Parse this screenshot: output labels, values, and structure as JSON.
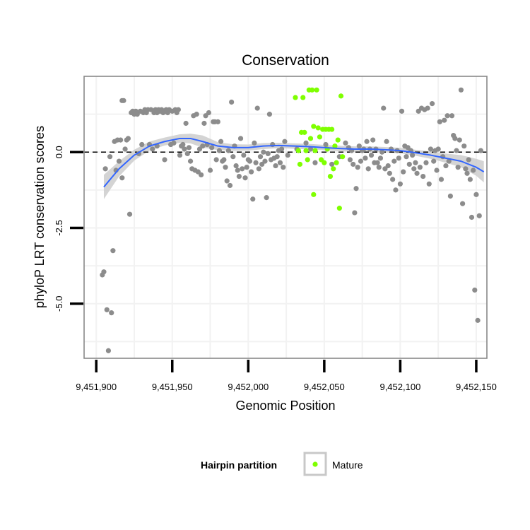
{
  "chart_data": {
    "type": "scatter",
    "title": "Conservation",
    "xlabel": "Genomic Position",
    "ylabel": "phyloP LRT conservation scores",
    "xlim": [
      9451892,
      9452157
    ],
    "ylim": [
      -6.8,
      2.5
    ],
    "x_ticks": [
      {
        "value": 9451900,
        "label": "9,451,900"
      },
      {
        "value": 9451950,
        "label": "9,451,950"
      },
      {
        "value": 9452000,
        "label": "9,452,000"
      },
      {
        "value": 9452050,
        "label": "9,452,050"
      },
      {
        "value": 9452100,
        "label": "9,452,100"
      },
      {
        "value": 9452150,
        "label": "9,452,150"
      }
    ],
    "y_ticks": [
      {
        "value": 0,
        "label": "0.0"
      },
      {
        "value": -2.5,
        "label": "-2.5"
      },
      {
        "value": -5,
        "label": "-5.0"
      }
    ],
    "reference_line": {
      "y": 0,
      "style": "dashed",
      "color": "#000000"
    },
    "grid": true,
    "colors": {
      "other": "#8c8c8c",
      "mature": "#7fff00",
      "smooth_line": "#3366ff",
      "confidence_band": "#cccccc",
      "panel_border": "#888888",
      "grid": "#f2f2f2"
    },
    "legend": {
      "title": "Hairpin partition",
      "placement": "bottom",
      "entries": [
        {
          "name": "Mature",
          "color": "#7fff00"
        }
      ]
    },
    "series": [
      {
        "group": "other",
        "points": [
          [
            9451904,
            -4.05
          ],
          [
            9451905,
            -3.95
          ],
          [
            9451906,
            -0.55
          ],
          [
            9451907,
            -5.2
          ],
          [
            9451908,
            -6.55
          ],
          [
            9451909,
            -0.15
          ],
          [
            9451910,
            -5.3
          ],
          [
            9451911,
            -3.25
          ],
          [
            9451912,
            0.35
          ],
          [
            9451913,
            -0.6
          ],
          [
            9451914,
            0.4
          ],
          [
            9451915,
            -0.3
          ],
          [
            9451916,
            0.4
          ],
          [
            9451917,
            -0.85
          ],
          [
            9451917,
            1.7
          ],
          [
            9451918,
            1.7
          ],
          [
            9451919,
            0.1
          ],
          [
            9451920,
            0.4
          ],
          [
            9451921,
            0.45
          ],
          [
            9451922,
            -2.05
          ],
          [
            9451923,
            1.3
          ],
          [
            9451924,
            1.35
          ],
          [
            9451925,
            1.25
          ],
          [
            9451926,
            1.35
          ],
          [
            9451927,
            1.25
          ],
          [
            9451928,
            -0.05
          ],
          [
            9451929,
            1.35
          ],
          [
            9451930,
            0.25
          ],
          [
            9451931,
            1.3
          ],
          [
            9451932,
            1.4
          ],
          [
            9451933,
            1.3
          ],
          [
            9451934,
            1.4
          ],
          [
            9451935,
            0.25
          ],
          [
            9451936,
            1.4
          ],
          [
            9451937,
            0.1
          ],
          [
            9451938,
            1.3
          ],
          [
            9451939,
            1.4
          ],
          [
            9451940,
            1.3
          ],
          [
            9451940,
            0.2
          ],
          [
            9451941,
            1.4
          ],
          [
            9451942,
            1.35
          ],
          [
            9451943,
            1.4
          ],
          [
            9451944,
            1.3
          ],
          [
            9451945,
            -0.25
          ],
          [
            9451946,
            1.4
          ],
          [
            9451947,
            1.3
          ],
          [
            9451948,
            1.4
          ],
          [
            9451949,
            0.25
          ],
          [
            9451950,
            1.35
          ],
          [
            9451951,
            0.3
          ],
          [
            9451952,
            1.4
          ],
          [
            9451953,
            1.3
          ],
          [
            9451954,
            1.4
          ],
          [
            9451955,
            -0.1
          ],
          [
            9451956,
            0.2
          ],
          [
            9451957,
            0.25
          ],
          [
            9451958,
            0.1
          ],
          [
            9451959,
            0.95
          ],
          [
            9451960,
            -0.05
          ],
          [
            9451961,
            0.15
          ],
          [
            9451962,
            -0.3
          ],
          [
            9451963,
            -0.55
          ],
          [
            9451964,
            1.2
          ],
          [
            9451965,
            -0.6
          ],
          [
            9451966,
            1.25
          ],
          [
            9451967,
            -0.65
          ],
          [
            9451968,
            0.1
          ],
          [
            9451969,
            -0.75
          ],
          [
            9451970,
            0.2
          ],
          [
            9451971,
            0.95
          ],
          [
            9451972,
            1.2
          ],
          [
            9451973,
            0.25
          ],
          [
            9451974,
            1.3
          ],
          [
            9451975,
            -0.6
          ],
          [
            9451976,
            0.15
          ],
          [
            9451977,
            1.0
          ],
          [
            9451978,
            1.0
          ],
          [
            9451979,
            -0.25
          ],
          [
            9451980,
            1.0
          ],
          [
            9451981,
            0.05
          ],
          [
            9451982,
            0.35
          ],
          [
            9451983,
            -0.3
          ],
          [
            9451984,
            -0.25
          ],
          [
            9451985,
            -0.5
          ],
          [
            9451986,
            -0.95
          ],
          [
            9451987,
            0.05
          ],
          [
            9451988,
            -1.1
          ],
          [
            9451989,
            1.65
          ],
          [
            9451990,
            -0.15
          ],
          [
            9451991,
            0.2
          ],
          [
            9451992,
            -0.45
          ],
          [
            9451993,
            -0.6
          ],
          [
            9451994,
            -0.8
          ],
          [
            9451995,
            0.45
          ],
          [
            9451996,
            -0.55
          ],
          [
            9451997,
            -0.1
          ],
          [
            9451998,
            -0.85
          ],
          [
            9451999,
            -0.5
          ],
          [
            9452000,
            -0.25
          ],
          [
            9452001,
            -0.3
          ],
          [
            9452002,
            -0.65
          ],
          [
            9452003,
            -1.55
          ],
          [
            9452004,
            0.3
          ],
          [
            9452005,
            -0.35
          ],
          [
            9452006,
            1.45
          ],
          [
            9452007,
            -0.55
          ],
          [
            9452008,
            -0.15
          ],
          [
            9452009,
            -0.4
          ],
          [
            9452010,
            0.0
          ],
          [
            9452011,
            -0.3
          ],
          [
            9452012,
            -1.5
          ],
          [
            9452013,
            -0.05
          ],
          [
            9452014,
            1.25
          ],
          [
            9452015,
            -0.25
          ],
          [
            9452016,
            0.25
          ],
          [
            9452017,
            -0.2
          ],
          [
            9452018,
            -0.45
          ],
          [
            9452019,
            -0.15
          ],
          [
            9452020,
            0.05
          ],
          [
            9452021,
            -0.35
          ],
          [
            9452022,
            0.1
          ],
          [
            9452023,
            -0.5
          ],
          [
            9452024,
            0.35
          ],
          [
            9452026,
            -0.1
          ],
          [
            9452032,
            0.1
          ],
          [
            9452038,
            0.3
          ],
          [
            9452041,
            0.1
          ],
          [
            9452044,
            -0.35
          ],
          [
            9452051,
            0.25
          ],
          [
            9452055,
            -0.4
          ],
          [
            9452060,
            -0.15
          ],
          [
            9452064,
            0.3
          ],
          [
            9452066,
            0.15
          ],
          [
            9452067,
            -0.25
          ],
          [
            9452068,
            0.05
          ],
          [
            9452069,
            -0.4
          ],
          [
            9452070,
            -2.0
          ],
          [
            9452071,
            -1.2
          ],
          [
            9452072,
            -0.5
          ],
          [
            9452073,
            0.2
          ],
          [
            9452074,
            -0.3
          ],
          [
            9452075,
            0.05
          ],
          [
            9452076,
            0.1
          ],
          [
            9452077,
            -0.2
          ],
          [
            9452078,
            0.35
          ],
          [
            9452079,
            -0.55
          ],
          [
            9452080,
            0.1
          ],
          [
            9452081,
            -0.1
          ],
          [
            9452082,
            0.4
          ],
          [
            9452083,
            -0.35
          ],
          [
            9452084,
            0.1
          ],
          [
            9452085,
            -0.35
          ],
          [
            9452086,
            -0.5
          ],
          [
            9452087,
            -0.2
          ],
          [
            9452088,
            0.0
          ],
          [
            9452089,
            1.45
          ],
          [
            9452090,
            -0.55
          ],
          [
            9452091,
            0.35
          ],
          [
            9452092,
            -0.45
          ],
          [
            9452093,
            -0.7
          ],
          [
            9452094,
            0.1
          ],
          [
            9452095,
            -0.9
          ],
          [
            9452096,
            -0.3
          ],
          [
            9452097,
            -1.25
          ],
          [
            9452098,
            0.05
          ],
          [
            9452099,
            -0.2
          ],
          [
            9452100,
            -1.05
          ],
          [
            9452101,
            1.35
          ],
          [
            9452102,
            -0.65
          ],
          [
            9452103,
            0.2
          ],
          [
            9452104,
            -0.15
          ],
          [
            9452105,
            0.15
          ],
          [
            9452106,
            -0.4
          ],
          [
            9452107,
            0.05
          ],
          [
            9452108,
            -0.1
          ],
          [
            9452109,
            -0.55
          ],
          [
            9452110,
            -0.35
          ],
          [
            9452111,
            -0.7
          ],
          [
            9452112,
            1.35
          ],
          [
            9452113,
            -0.5
          ],
          [
            9452114,
            1.45
          ],
          [
            9452115,
            -0.8
          ],
          [
            9452116,
            1.4
          ],
          [
            9452117,
            -0.35
          ],
          [
            9452118,
            1.45
          ],
          [
            9452119,
            -1.05
          ],
          [
            9452120,
            0.1
          ],
          [
            9452121,
            1.6
          ],
          [
            9452122,
            -0.3
          ],
          [
            9452123,
            0.05
          ],
          [
            9452124,
            -0.6
          ],
          [
            9452125,
            0.1
          ],
          [
            9452126,
            1.0
          ],
          [
            9452127,
            -0.9
          ],
          [
            9452128,
            -0.15
          ],
          [
            9452129,
            1.05
          ],
          [
            9452130,
            -0.45
          ],
          [
            9452131,
            1.2
          ],
          [
            9452132,
            -0.3
          ],
          [
            9452133,
            -1.45
          ],
          [
            9452134,
            1.2
          ],
          [
            9452135,
            0.55
          ],
          [
            9452136,
            0.45
          ],
          [
            9452137,
            0.05
          ],
          [
            9452138,
            -0.5
          ],
          [
            9452139,
            0.4
          ],
          [
            9452140,
            2.05
          ],
          [
            9452141,
            -1.7
          ],
          [
            9452142,
            0.2
          ],
          [
            9452143,
            -0.55
          ],
          [
            9452144,
            -0.7
          ],
          [
            9452145,
            -0.25
          ],
          [
            9452146,
            -0.9
          ],
          [
            9452147,
            -2.15
          ],
          [
            9452148,
            -0.6
          ],
          [
            9452149,
            -4.55
          ],
          [
            9452150,
            -1.4
          ],
          [
            9452151,
            -5.55
          ],
          [
            9452152,
            -2.1
          ],
          [
            9452153,
            0.05
          ]
        ]
      },
      {
        "group": "Mature",
        "points": [
          [
            9452031,
            1.8
          ],
          [
            9452033,
            0.05
          ],
          [
            9452034,
            -0.4
          ],
          [
            9452035,
            0.65
          ],
          [
            9452036,
            1.8
          ],
          [
            9452037,
            0.65
          ],
          [
            9452038,
            0.05
          ],
          [
            9452039,
            -0.25
          ],
          [
            9452040,
            2.05
          ],
          [
            9452041,
            0.45
          ],
          [
            9452042,
            2.05
          ],
          [
            9452043,
            0.85
          ],
          [
            9452043,
            -1.4
          ],
          [
            9452044,
            0.05
          ],
          [
            9452045,
            2.05
          ],
          [
            9452046,
            0.8
          ],
          [
            9452047,
            0.5
          ],
          [
            9452048,
            -0.25
          ],
          [
            9452049,
            0.75
          ],
          [
            9452050,
            -0.35
          ],
          [
            9452051,
            0.75
          ],
          [
            9452052,
            0.1
          ],
          [
            9452053,
            0.75
          ],
          [
            9452054,
            -0.8
          ],
          [
            9452055,
            0.75
          ],
          [
            9452056,
            -0.55
          ],
          [
            9452057,
            0.2
          ],
          [
            9452058,
            -0.35
          ],
          [
            9452059,
            0.4
          ],
          [
            9452060,
            -1.85
          ],
          [
            9452061,
            1.85
          ],
          [
            9452062,
            -0.15
          ]
        ]
      }
    ],
    "smooth": {
      "x": [
        9451905,
        9451915,
        9451925,
        9451935,
        9451945,
        9451955,
        9451962,
        9451970,
        9451980,
        9451990,
        9452000,
        9452010,
        9452020,
        9452030,
        9452040,
        9452050,
        9452060,
        9452070,
        9452080,
        9452090,
        9452100,
        9452110,
        9452120,
        9452130,
        9452140,
        9452150,
        9452155
      ],
      "y": [
        -1.15,
        -0.55,
        -0.1,
        0.2,
        0.35,
        0.45,
        0.45,
        0.35,
        0.2,
        0.15,
        0.15,
        0.2,
        0.22,
        0.2,
        0.18,
        0.15,
        0.12,
        0.1,
        0.1,
        0.08,
        0.05,
        -0.02,
        -0.1,
        -0.2,
        -0.3,
        -0.5,
        -0.65
      ],
      "band": [
        0.4,
        0.25,
        0.18,
        0.15,
        0.13,
        0.14,
        0.16,
        0.2,
        0.13,
        0.11,
        0.1,
        0.1,
        0.09,
        0.09,
        0.09,
        0.09,
        0.09,
        0.09,
        0.09,
        0.09,
        0.09,
        0.1,
        0.12,
        0.15,
        0.2,
        0.28,
        0.35
      ]
    }
  }
}
